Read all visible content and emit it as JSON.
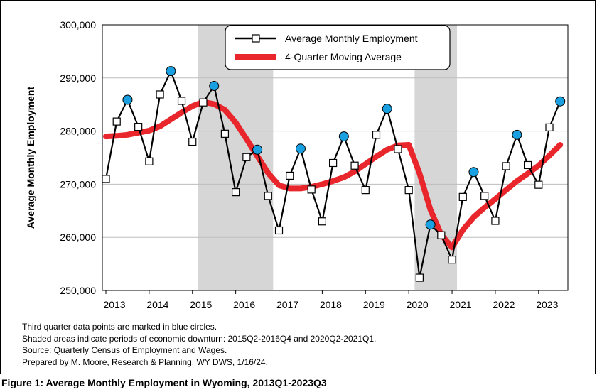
{
  "chart_data": {
    "type": "line",
    "ylabel": "Average Monthly Employment",
    "ylim": [
      250000,
      300000
    ],
    "yticks": [
      "250,000",
      "260,000",
      "270,000",
      "280,000",
      "290,000",
      "300,000"
    ],
    "ytick_values": [
      250000,
      260000,
      270000,
      280000,
      290000,
      300000
    ],
    "xticks": [
      "2013",
      "2014",
      "2015",
      "2016",
      "2017",
      "2018",
      "2019",
      "2020",
      "2021",
      "2022",
      "2023"
    ],
    "shaded_periods": [
      {
        "start": "2015Q2",
        "end": "2016Q4"
      },
      {
        "start": "2020Q2",
        "end": "2021Q1"
      }
    ],
    "quarters": [
      "2013Q1",
      "2013Q2",
      "2013Q3",
      "2013Q4",
      "2014Q1",
      "2014Q2",
      "2014Q3",
      "2014Q4",
      "2015Q1",
      "2015Q2",
      "2015Q3",
      "2015Q4",
      "2016Q1",
      "2016Q2",
      "2016Q3",
      "2016Q4",
      "2017Q1",
      "2017Q2",
      "2017Q3",
      "2017Q4",
      "2018Q1",
      "2018Q2",
      "2018Q3",
      "2018Q4",
      "2019Q1",
      "2019Q2",
      "2019Q3",
      "2019Q4",
      "2020Q1",
      "2020Q2",
      "2020Q3",
      "2020Q4",
      "2021Q1",
      "2021Q2",
      "2021Q3",
      "2021Q4",
      "2022Q1",
      "2022Q2",
      "2022Q3",
      "2022Q4",
      "2023Q1",
      "2023Q2",
      "2023Q3"
    ],
    "series": [
      {
        "name": "Average Monthly Employment",
        "color": "#000000",
        "marker": "square",
        "values": [
          271000,
          281800,
          285900,
          280800,
          274300,
          286900,
          291300,
          285700,
          278000,
          285400,
          288500,
          279500,
          268500,
          275100,
          276500,
          267800,
          261300,
          271600,
          276700,
          269000,
          263000,
          274000,
          279000,
          273500,
          268900,
          279300,
          284200,
          276600,
          268900,
          252400,
          262400,
          260400,
          255800,
          267600,
          272300,
          267800,
          263100,
          273400,
          279300,
          273600,
          269900,
          280700,
          285600
        ]
      },
      {
        "name": "4-Quarter Moving Average",
        "color": "#e8262c",
        "values": [
          279000,
          279100,
          279300,
          279700,
          280100,
          280900,
          282200,
          283500,
          284700,
          285500,
          285100,
          284000,
          281600,
          278500,
          275300,
          272100,
          269800,
          269200,
          269200,
          269500,
          270000,
          270600,
          271300,
          272400,
          273800,
          275200,
          276500,
          277300,
          277400,
          272000,
          265200,
          260500,
          258100,
          261400,
          263800,
          265600,
          267200,
          268900,
          270600,
          272000,
          273500,
          275400,
          277400
        ]
      }
    ],
    "highlight_series": "Average Monthly Employment",
    "highlight_quarter": "Q3",
    "highlight_color": "#1aa0e0",
    "grid": "horizontal",
    "legend_position": "top-right"
  },
  "notes": [
    "Third quarter data points are marked in blue circles.",
    "Shaded areas indicate periods of economic downturn: 2015Q2-2016Q4 and 2020Q2-2021Q1.",
    "Source: Quarterly Census of Employment and Wages.",
    "Prepared by M. Moore, Research & Planning, WY DWS, 1/16/24."
  ],
  "caption": "Figure 1: Average Monthly Employment in Wyoming, 2013Q1-2023Q3"
}
